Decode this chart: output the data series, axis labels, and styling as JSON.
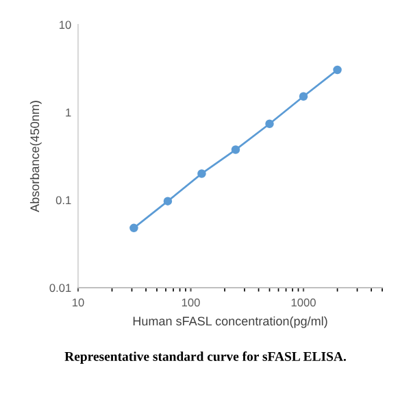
{
  "chart_data": {
    "type": "line",
    "xlabel": "Human sFASL concentration(pg/ml)",
    "ylabel": "Absorbance(450nm)",
    "x": [
      31.25,
      62.5,
      125,
      250,
      500,
      1000,
      2000
    ],
    "series": [
      {
        "color": "#5b9bd5",
        "values": [
          0.048,
          0.097,
          0.2,
          0.375,
          0.74,
          1.52,
          3.05
        ]
      }
    ],
    "log": "xy",
    "xlim": [
      10,
      5000
    ],
    "ylim": [
      0.01,
      10
    ],
    "xticks": [
      10,
      100,
      1000
    ],
    "yticks": [
      0.01,
      0.1,
      1,
      10
    ],
    "marker": "circle",
    "line_style": "solid",
    "grid": false,
    "annotations": [
      "Representative standard curve for sFASL ELISA."
    ]
  }
}
